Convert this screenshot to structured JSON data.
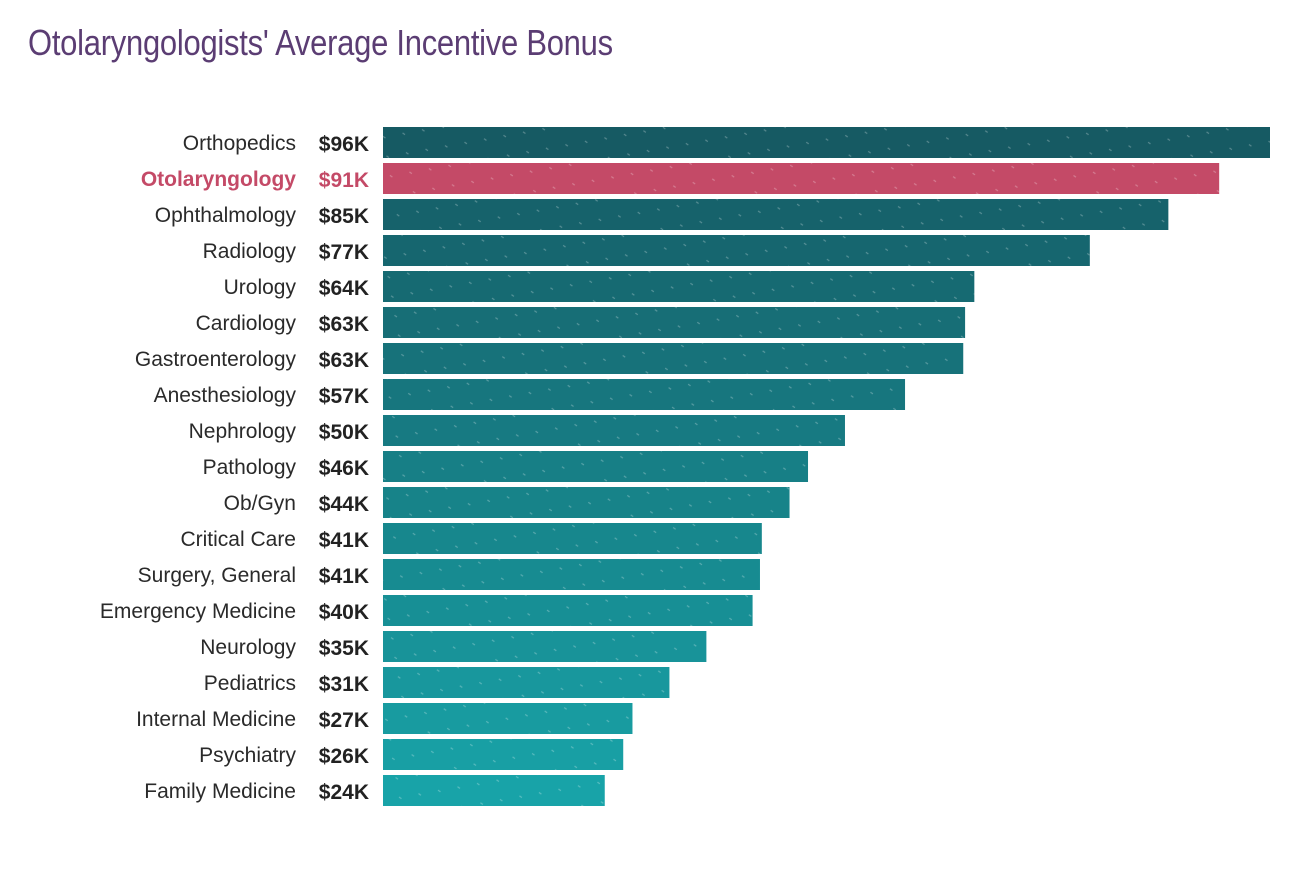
{
  "title": "Otolaryngologists' Average Incentive Bonus",
  "colors": {
    "title": "#5b3d73",
    "highlight": "#c44a67",
    "bar_top": "#165a63",
    "bar_bottom": "#18a3a8"
  },
  "chart_data": {
    "type": "bar",
    "orientation": "horizontal",
    "title": "Otolaryngologists' Average Incentive Bonus",
    "xlabel": "",
    "ylabel": "",
    "highlight": "Otolaryngology",
    "xlim": [
      0,
      96
    ],
    "grid": false,
    "categories": [
      "Orthopedics",
      "Otolaryngology",
      "Ophthalmology",
      "Radiology",
      "Urology",
      "Cardiology",
      "Gastroenterology",
      "Anesthesiology",
      "Nephrology",
      "Pathology",
      "Ob/Gyn",
      "Critical Care",
      "Surgery, General",
      "Emergency Medicine",
      "Neurology",
      "Pediatrics",
      "Internal Medicine",
      "Psychiatry",
      "Family Medicine"
    ],
    "values": [
      96,
      90.5,
      85,
      76.5,
      64,
      63,
      62.8,
      56.5,
      50,
      46,
      44,
      41,
      40.8,
      40,
      35,
      31,
      27,
      26,
      24
    ],
    "value_labels": [
      "$96K",
      "$91K",
      "$85K",
      "$77K",
      "$64K",
      "$63K",
      "$63K",
      "$57K",
      "$50K",
      "$46K",
      "$44K",
      "$41K",
      "$41K",
      "$40K",
      "$35K",
      "$31K",
      "$27K",
      "$26K",
      "$24K"
    ]
  }
}
